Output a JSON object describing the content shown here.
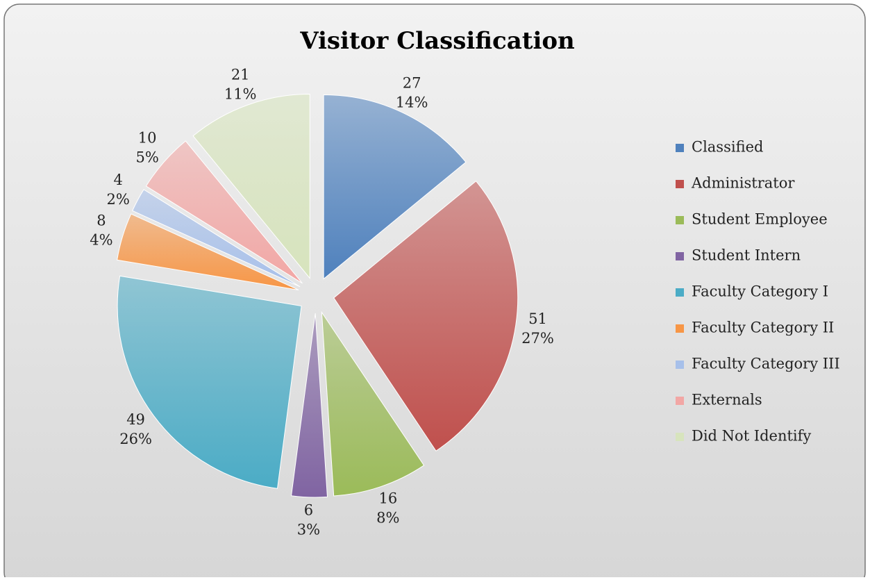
{
  "chart_data": {
    "type": "pie",
    "title": "Visitor Classification",
    "categories": [
      "Classified",
      "Administrator",
      "Student Employee",
      "Student Intern",
      "Faculty Category I",
      "Faculty Category II",
      "Faculty Category III",
      "Externals",
      "Did Not Identify"
    ],
    "values": [
      27,
      51,
      16,
      6,
      49,
      8,
      4,
      10,
      21
    ],
    "percent_labels": [
      "14%",
      "27%",
      "8%",
      "3%",
      "26%",
      "4%",
      "2%",
      "5%",
      "11%"
    ],
    "colors": [
      "#4f81bd",
      "#c0504d",
      "#9bbb59",
      "#8064a2",
      "#4bacc6",
      "#f79646",
      "#a7c0ea",
      "#f2a7a5",
      "#d7e4bd"
    ],
    "legend": "right"
  }
}
